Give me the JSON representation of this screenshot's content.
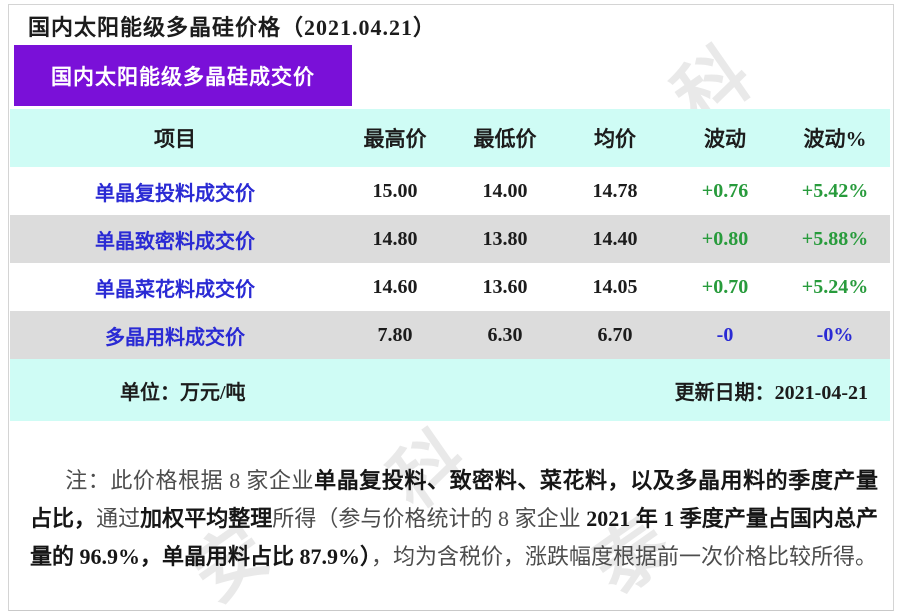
{
  "page_title": "国内太阳能级多晶硅价格（2021.04.21）",
  "banner": {
    "label": "国内太阳能级多晶硅成交价"
  },
  "table": {
    "columns": [
      "项目",
      "最高价",
      "最低价",
      "均价",
      "波动",
      "波动%"
    ],
    "rows": [
      {
        "item": "单晶复投料成交价",
        "high": "15.00",
        "low": "14.00",
        "avg": "14.78",
        "change": "+0.76",
        "change_pct": "+5.42%",
        "trend": "up"
      },
      {
        "item": "单晶致密料成交价",
        "high": "14.80",
        "low": "13.80",
        "avg": "14.40",
        "change": "+0.80",
        "change_pct": "+5.88%",
        "trend": "up"
      },
      {
        "item": "单晶菜花料成交价",
        "high": "14.60",
        "low": "13.60",
        "avg": "14.05",
        "change": "+0.70",
        "change_pct": "+5.24%",
        "trend": "up"
      },
      {
        "item": "多晶用料成交价",
        "high": "7.80",
        "low": "6.30",
        "avg": "6.70",
        "change": "-0",
        "change_pct": "-0%",
        "trend": "flat"
      }
    ],
    "footer": {
      "unit_label": "单位：万元/吨",
      "updated_label": "更新日期：2021-04-21"
    }
  },
  "note": {
    "segments": [
      {
        "text": "注：此价格根据 8 家企业"
      },
      {
        "text": "单晶复投料、致密料、菜花料，以及多晶用料的季度产量占比，"
      },
      {
        "text": "通过"
      },
      {
        "text": "加权平均整理"
      },
      {
        "text": "所得（参与价格统计的 8 家企业 "
      },
      {
        "text": "2021 年 1 季度产量占国内总产量的 96.9%，单晶用料占比 87.9%）"
      },
      {
        "text": "，均为含税价，涨跌幅度根据前一次价格比较所得。"
      }
    ]
  },
  "watermark": {
    "chars": [
      "科",
      "泰",
      "科",
      "科",
      "泰",
      "安"
    ]
  },
  "colors": {
    "banner_purple": "#7a10d8",
    "band_cyan": "#cffcf5",
    "band_gray": "#dcdcdc",
    "item_blue": "#2a2ad4",
    "change_green": "#289b3c",
    "change_blue_flat": "#2a2ad4",
    "text_black": "#1c1c1c"
  }
}
